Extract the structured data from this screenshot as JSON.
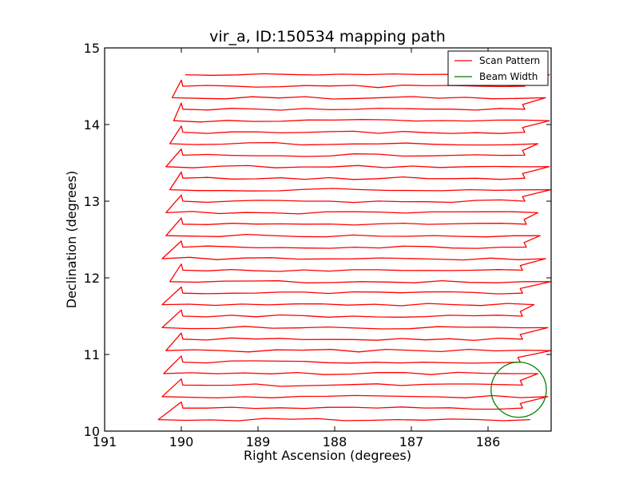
{
  "chart_data": {
    "type": "line",
    "title": "vir_a, ID:150534 mapping path",
    "xlabel": "Right Ascension (degrees)",
    "ylabel": "Declination (degrees)",
    "xlim": [
      191,
      185.2
    ],
    "ylim": [
      10,
      15
    ],
    "xticks": [
      191,
      190,
      189,
      188,
      187,
      186
    ],
    "xtick_labels": [
      "191",
      "190",
      "189",
      "188",
      "187",
      "186"
    ],
    "yticks": [
      10,
      11,
      12,
      13,
      14,
      15
    ],
    "ytick_labels": [
      "10",
      "11",
      "12",
      "13",
      "14",
      "15"
    ],
    "grid": false,
    "legend": {
      "placement": "top-right",
      "entries": [
        {
          "label": "Scan Pattern",
          "color": "#ff0000"
        },
        {
          "label": "Beam Width",
          "color": "#008000"
        }
      ]
    },
    "series": [
      {
        "name": "Scan Pattern",
        "color": "#ff0000",
        "scan_rows_dec": [
          10.15,
          10.3,
          10.45,
          10.6,
          10.75,
          10.9,
          11.05,
          11.2,
          11.35,
          11.5,
          11.65,
          11.8,
          11.95,
          12.1,
          12.25,
          12.4,
          12.55,
          12.7,
          12.85,
          13.0,
          13.15,
          13.3,
          13.45,
          13.6,
          13.75,
          13.9,
          14.05,
          14.2,
          14.35,
          14.5,
          14.65
        ],
        "ra_left_edge": [
          190.3,
          189.98,
          190.25,
          189.98,
          190.23,
          189.98,
          190.2,
          189.98,
          190.25,
          189.98,
          190.25,
          189.98,
          190.15,
          189.98,
          190.25,
          189.98,
          190.2,
          189.98,
          190.2,
          189.98,
          190.15,
          189.98,
          190.2,
          189.98,
          190.15,
          189.98,
          190.1,
          189.98,
          190.12,
          189.98,
          189.95
        ],
        "ra_right_edge": [
          185.45,
          185.55,
          185.22,
          185.55,
          185.35,
          185.58,
          185.18,
          185.55,
          185.22,
          185.55,
          185.4,
          185.55,
          185.18,
          185.55,
          185.25,
          185.5,
          185.32,
          185.5,
          185.35,
          185.52,
          185.18,
          185.52,
          185.2,
          185.52,
          185.35,
          185.52,
          185.2,
          185.52,
          185.25,
          185.52,
          185.2
        ]
      },
      {
        "name": "Beam Width",
        "color": "#008000",
        "center": [
          185.6,
          10.54
        ],
        "radius_deg": 0.36
      }
    ]
  }
}
